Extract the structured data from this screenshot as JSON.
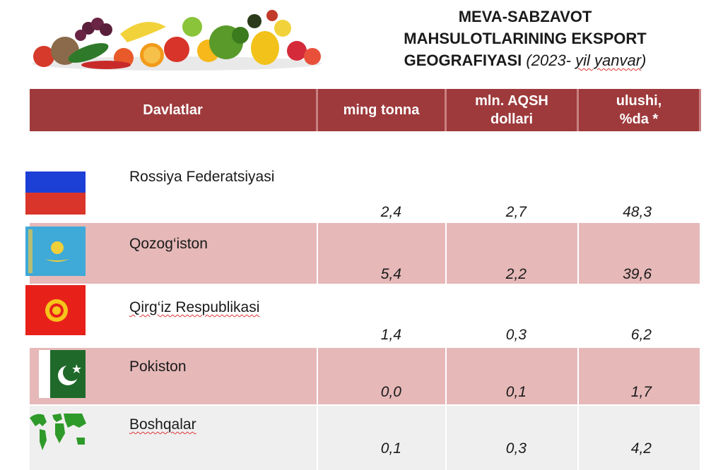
{
  "title": {
    "line1": "MEVA-SABZAVOT",
    "line2": "MAHSULOTLARINING EKSPORT",
    "line3_bold": "GEOGRAFIYASI",
    "line3_italic": "(2023-",
    "line3_italic_squig": "yil yanvar",
    "line3_close": ")"
  },
  "header": {
    "col1": "Davlatlar",
    "col2": "ming tonna",
    "col3_l1": "mln. AQSH",
    "col3_l2": "dollari",
    "col4_l1": "ulushi,",
    "col4_l2": "%da *"
  },
  "rows": [
    {
      "country": "Rossiya Federatsiyasi",
      "tonnes": "2,4",
      "usd": "2,7",
      "share": "48,3",
      "flag": "russia-flag"
    },
    {
      "country": "Qozog‘iston",
      "tonnes": "5,4",
      "usd": "2,2",
      "share": "39,6",
      "flag": "kazakhstan-flag"
    },
    {
      "country": "Qirg‘iz Respublikasi",
      "tonnes": "1,4",
      "usd": "0,3",
      "share": "6,2",
      "flag": "kyrgyzstan-flag"
    },
    {
      "country": "Pokiston",
      "tonnes": "0,0",
      "usd": "0,1",
      "share": "1,7",
      "flag": "pakistan-flag"
    },
    {
      "country": "Boshqalar",
      "tonnes": "0,1",
      "usd": "0,3",
      "share": "4,2",
      "flag": "world-map-icon"
    }
  ],
  "colors": {
    "header_bg": "#9e3a3c",
    "band_pink": "#e6b8b8",
    "band_grey": "#efefef"
  }
}
